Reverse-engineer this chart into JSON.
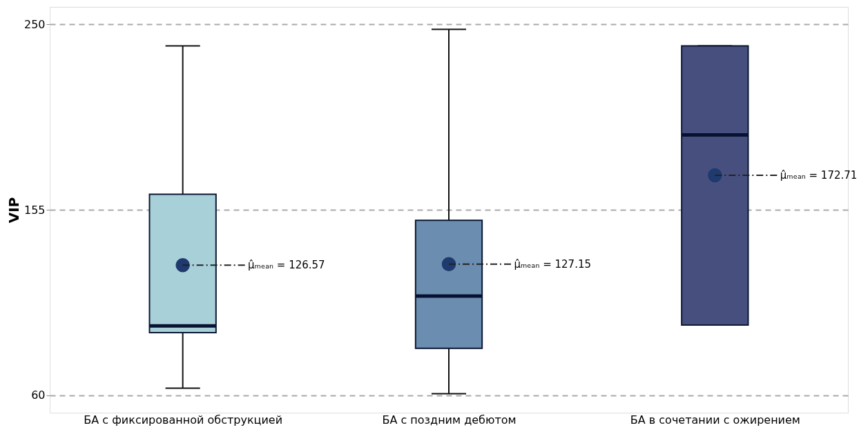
{
  "chart_data": {
    "type": "box",
    "ylabel": "VIP",
    "categories": [
      "БА с фиксированной обструкцией",
      "БА с поздним дебютом",
      "БА в сочетании с ожирением"
    ],
    "boxes": [
      {
        "low": 63.6,
        "q1": 92,
        "median": 95.5,
        "q3": 163,
        "high": 239,
        "mean": 126.57
      },
      {
        "low": 60.7,
        "q1": 84,
        "median": 110.8,
        "q3": 149.6,
        "high": 247.5,
        "mean": 127.15
      },
      {
        "low": 95.9,
        "q1": 95.9,
        "median": 193.4,
        "q3": 239,
        "high": 239,
        "mean": 172.71
      }
    ],
    "colors": [
      "#a8d0d8",
      "#6a8db0",
      "#474f7e"
    ],
    "ylim": [
      51,
      259
    ],
    "yticks": [
      60,
      155,
      250
    ],
    "grid": "y",
    "annotations": [
      "μ̂ₘₑₐₙ = 126.57",
      "μ̂ₘₑₐₙ = 127.15",
      "μ̂ₘₑₐₙ = 172.71"
    ]
  }
}
